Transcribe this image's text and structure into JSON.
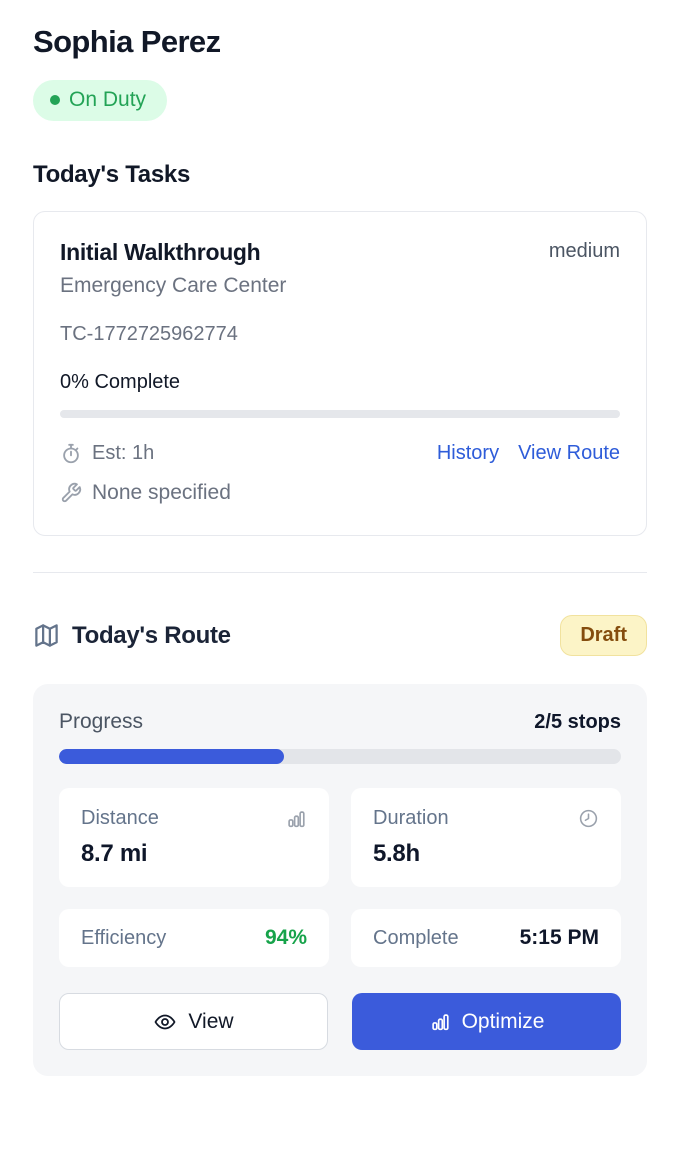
{
  "colors": {
    "accent_blue": "#3b5bdb",
    "link_blue": "#2e5cd9",
    "green": "#16a34a",
    "badge_green_bg": "#dcfce7",
    "draft_bg": "#fcf4c7",
    "draft_text": "#854d0e"
  },
  "header": {
    "name": "Sophia Perez",
    "status": "On Duty"
  },
  "tasks": {
    "heading": "Today's Tasks",
    "card": {
      "title": "Initial Walkthrough",
      "priority": "medium",
      "location": "Emergency Care Center",
      "task_code": "TC-1772725962774",
      "complete_label": "0% Complete",
      "progress_pct": 0,
      "est_label": "Est: 1h",
      "history_link": "History",
      "view_route_link": "View Route",
      "tools_label": "None specified"
    }
  },
  "route": {
    "heading": "Today's Route",
    "badge": "Draft",
    "card": {
      "progress_label": "Progress",
      "stops_label": "2/5 stops",
      "progress_pct": 40,
      "stats": [
        {
          "label": "Distance",
          "value": "8.7 mi",
          "icon": "bar-chart-icon"
        },
        {
          "label": "Duration",
          "value": "5.8h",
          "icon": "clock-icon"
        }
      ],
      "mini_stats": [
        {
          "label": "Efficiency",
          "value": "94%"
        },
        {
          "label": "Complete",
          "value": "5:15 PM"
        }
      ],
      "view_button": "View",
      "optimize_button": "Optimize"
    }
  }
}
